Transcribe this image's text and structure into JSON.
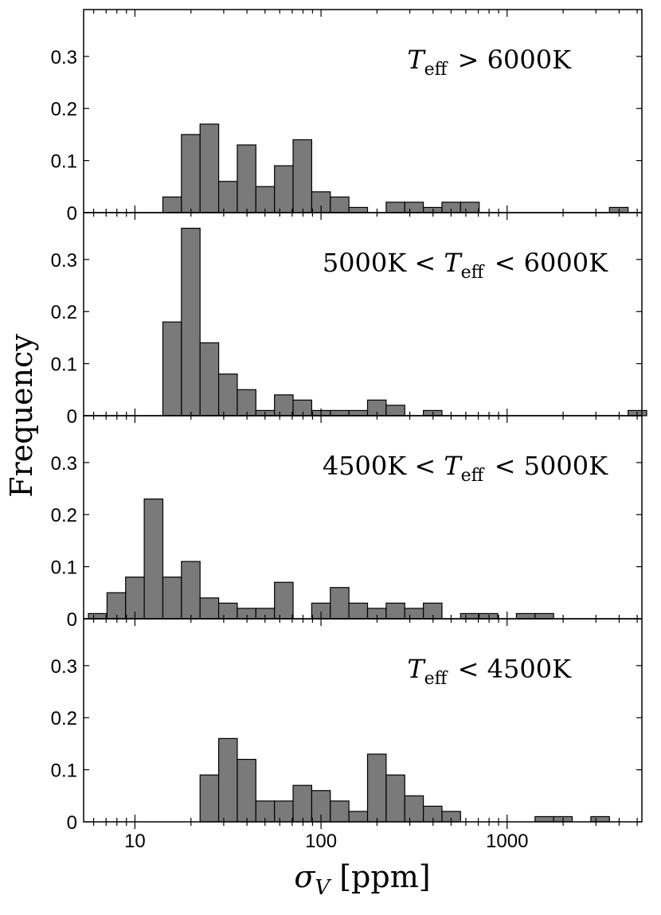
{
  "chart_data": {
    "type": "histogram",
    "xscale": "log",
    "xlim": [
      5.3,
      5300
    ],
    "xlabel": "σ_V [ppm]",
    "ylabel": "Frequency",
    "ylim": [
      0,
      0.39
    ],
    "yticks": [
      "0",
      "0.1",
      "0.2",
      "0.3"
    ],
    "xticks": [
      {
        "value": 10,
        "label": "10"
      },
      {
        "value": 100,
        "label": "100"
      },
      {
        "value": 1000,
        "label": "1000"
      }
    ],
    "bin_edges_log10": [
      0.75,
      0.85,
      0.95,
      1.05,
      1.15,
      1.25,
      1.35,
      1.45,
      1.55,
      1.65,
      1.75,
      1.85,
      1.95,
      2.05,
      2.15,
      2.25,
      2.35,
      2.45,
      2.55,
      2.65,
      2.75,
      2.85,
      2.95,
      3.05,
      3.15,
      3.25,
      3.35,
      3.45,
      3.55,
      3.65,
      3.75
    ],
    "panels": [
      {
        "title": "T_eff > 6000K",
        "values": [
          0,
          0,
          0,
          0,
          0.03,
          0.15,
          0.17,
          0.06,
          0.13,
          0.05,
          0.09,
          0.14,
          0.04,
          0.03,
          0.01,
          0,
          0.02,
          0.02,
          0.01,
          0.02,
          0.02,
          0,
          0,
          0,
          0,
          0,
          0,
          0,
          0.01,
          0
        ]
      },
      {
        "title": "5000K < T_eff < 6000K",
        "values": [
          0,
          0,
          0,
          0,
          0.18,
          0.36,
          0.14,
          0.08,
          0.05,
          0.01,
          0.04,
          0.03,
          0.01,
          0.01,
          0.01,
          0.03,
          0.02,
          0,
          0.01,
          0,
          0,
          0,
          0,
          0,
          0,
          0,
          0,
          0,
          0,
          0.01
        ]
      },
      {
        "title": "4500K < T_eff < 5000K",
        "values": [
          0.01,
          0.05,
          0.08,
          0.23,
          0.08,
          0.11,
          0.04,
          0.03,
          0.02,
          0.02,
          0.07,
          0,
          0.03,
          0.06,
          0.03,
          0.02,
          0.03,
          0.02,
          0.03,
          0,
          0.01,
          0.01,
          0,
          0.01,
          0.01,
          0,
          0,
          0,
          0,
          0
        ]
      },
      {
        "title": "T_eff < 4500K",
        "values": [
          0,
          0,
          0,
          0,
          0,
          0,
          0.09,
          0.16,
          0.12,
          0.04,
          0.04,
          0.07,
          0.06,
          0.04,
          0.02,
          0.13,
          0.09,
          0.05,
          0.03,
          0.02,
          0,
          0,
          0,
          0,
          0.01,
          0.01,
          0,
          0.01,
          0,
          0
        ]
      }
    ]
  },
  "colors": {
    "bar_fill": "#7a7a7a",
    "bar_stroke": "#000000",
    "axis": "#000000"
  }
}
